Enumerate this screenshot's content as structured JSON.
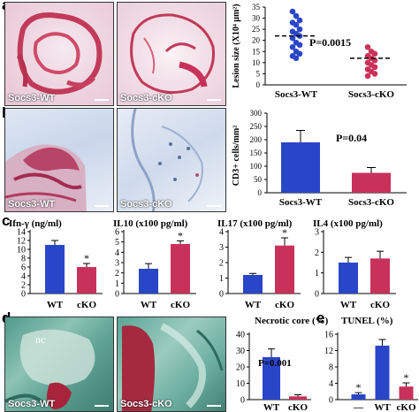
{
  "panels": {
    "a": {
      "letter": "a",
      "photo_labels": [
        "Socs3-WT",
        "Socs3-cKO"
      ],
      "colors": {
        "wt": "#2a46c8",
        "cko": "#c8325a"
      },
      "chart_data": {
        "type": "scatter",
        "categories": [
          "Socs3-WT",
          "Socs3-cKO"
        ],
        "ylabel": "Lesion size (X10⁴ μm²)",
        "ylim": [
          0,
          35
        ],
        "yticks": [
          0,
          5,
          10,
          15,
          20,
          25,
          30,
          35
        ],
        "annotation": "P=0.0015",
        "means": [
          22,
          12
        ],
        "series": [
          {
            "category": "Socs3-WT",
            "values": [
              33,
              31,
              29,
              28,
              27,
              25,
              24,
              23,
              22,
              21,
              19,
              18,
              17,
              15,
              14,
              13,
              12
            ]
          },
          {
            "category": "Socs3-cKO",
            "values": [
              17,
              15,
              14,
              13,
              12,
              11,
              10,
              9,
              8,
              7,
              6,
              5,
              4
            ]
          }
        ]
      }
    },
    "b": {
      "letter": "b",
      "photo_labels": [
        "Socs3-WT",
        "Socs3-cKO"
      ],
      "chart_data": {
        "type": "bar",
        "categories": [
          "Socs3-WT",
          "Socs3-cKO"
        ],
        "values": [
          190,
          75
        ],
        "errors": [
          45,
          20
        ],
        "ylabel": "CD3+ cells/mm²",
        "ylim": [
          0,
          300
        ],
        "yticks": [
          0,
          50,
          100,
          150,
          200,
          250,
          300
        ],
        "annotation": "P=0.04"
      }
    },
    "c": {
      "letter": "c",
      "charts": [
        {
          "type": "bar",
          "title": "Ifn-γ (ng/ml)",
          "categories": [
            "WT",
            "cKO"
          ],
          "values": [
            11,
            6
          ],
          "errors": [
            1,
            0.8
          ],
          "ylim": [
            0,
            14
          ],
          "yticks": [
            0,
            2,
            4,
            6,
            8,
            10,
            12,
            14
          ],
          "star": [
            false,
            true
          ]
        },
        {
          "type": "bar",
          "title": "IL10 (x100 pg/ml)",
          "categories": [
            "WT",
            "cKO"
          ],
          "values": [
            2.4,
            4.8
          ],
          "errors": [
            0.5,
            0.3
          ],
          "ylim": [
            0,
            6
          ],
          "yticks": [
            0,
            1,
            2,
            3,
            4,
            5,
            6
          ],
          "star": [
            false,
            true
          ]
        },
        {
          "type": "bar",
          "title": "IL17 (x100 pg/ml)",
          "categories": [
            "WT",
            "cKO"
          ],
          "values": [
            1.2,
            3.1
          ],
          "errors": [
            0.1,
            0.5
          ],
          "ylim": [
            0,
            4
          ],
          "yticks": [
            0,
            1,
            2,
            3,
            4
          ],
          "star": [
            false,
            true
          ]
        },
        {
          "type": "bar",
          "title": "IL4 (x100 pg/ml)",
          "categories": [
            "WT",
            "cKO"
          ],
          "values": [
            1.5,
            1.7
          ],
          "errors": [
            0.25,
            0.35
          ],
          "ylim": [
            0,
            3
          ],
          "yticks": [
            0,
            1,
            2,
            3
          ],
          "star": [
            false,
            false
          ]
        }
      ]
    },
    "d": {
      "letter": "d",
      "photo_labels": [
        "Socs3-WT",
        "Socs3-cKO"
      ],
      "photo_annotation": "nc",
      "chart_data": {
        "type": "bar",
        "title": "Necrotic core (%)",
        "categories": [
          "WT",
          "cKO"
        ],
        "values": [
          26,
          2
        ],
        "errors": [
          5,
          1
        ],
        "ylim": [
          0,
          40
        ],
        "yticks": [
          0,
          10,
          20,
          30,
          40
        ],
        "annotation": "P=0.001"
      }
    },
    "e": {
      "letter": "e",
      "chart_data": {
        "type": "bar",
        "title": "TUNEL (%)",
        "categories": [
          "—",
          "WT",
          "cKO"
        ],
        "values": [
          1.3,
          13.2,
          3.2
        ],
        "errors": [
          0.4,
          1.5,
          0.9
        ],
        "colors": [
          "#2a46c8",
          "#2a46c8",
          "#c8325a"
        ],
        "ylim": [
          0,
          16
        ],
        "yticks": [
          0,
          4,
          8,
          12,
          16
        ],
        "star": [
          true,
          false,
          true
        ]
      }
    }
  }
}
